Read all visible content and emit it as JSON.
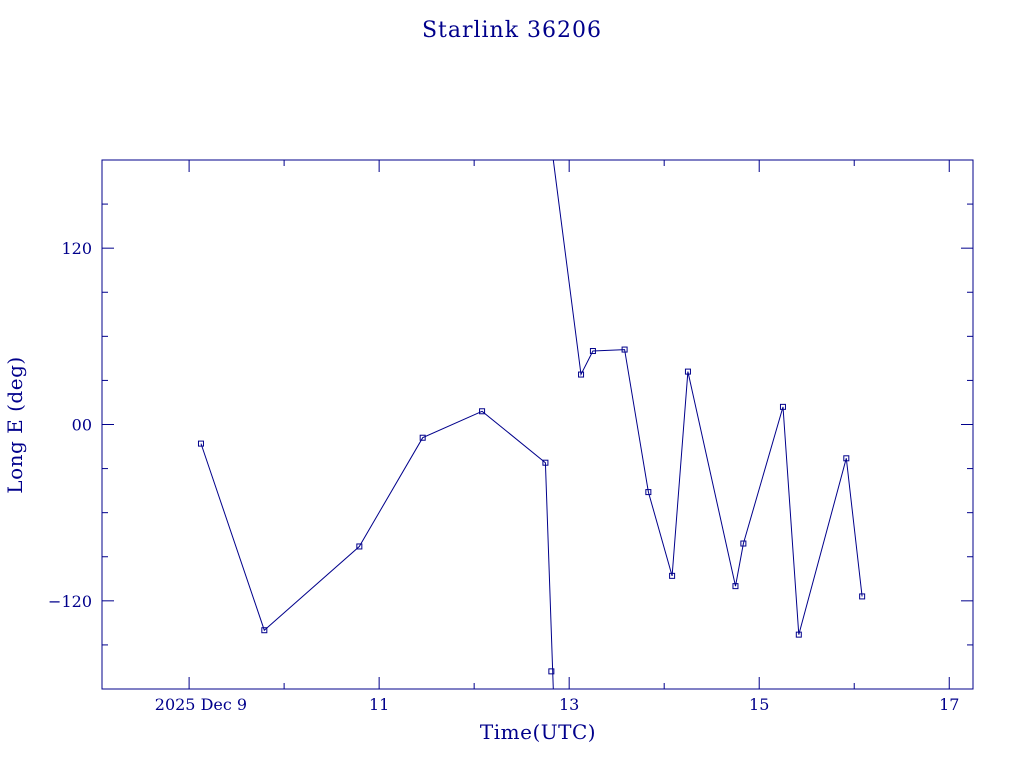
{
  "chart_data": {
    "type": "line",
    "title": "Starlink 36206",
    "xlabel": "Time(UTC)",
    "ylabel": "Long E (deg)",
    "color": "#00008b",
    "xlim": [
      "2025-12-08T02:00",
      "2025-12-17T06:00"
    ],
    "ylim": [
      -180,
      180
    ],
    "x_tick_labels": [
      {
        "t": "2025-12-09T00:00",
        "label": "2025 Dec  9"
      },
      {
        "t": "2025-12-11T00:00",
        "label": "11"
      },
      {
        "t": "2025-12-13T00:00",
        "label": "13"
      },
      {
        "t": "2025-12-15T00:00",
        "label": "15"
      },
      {
        "t": "2025-12-17T00:00",
        "label": "17"
      }
    ],
    "x_minor_ticks": [
      "2025-12-10T00:00",
      "2025-12-12T00:00",
      "2025-12-14T00:00",
      "2025-12-16T00:00"
    ],
    "y_tick_labels": [
      {
        "v": 120,
        "label": "120"
      },
      {
        "v": 0,
        "label": "00"
      },
      {
        "v": -120,
        "label": "−120"
      }
    ],
    "y_minor_ticks": [
      -150,
      -90,
      -60,
      -30,
      30,
      60,
      90,
      150
    ],
    "grid": false,
    "segments": [
      {
        "points": [
          {
            "t": "2025-12-09T03:00",
            "lon": -13
          },
          {
            "t": "2025-12-09T19:00",
            "lon": -140
          },
          {
            "t": "2025-12-10T19:00",
            "lon": -83
          },
          {
            "t": "2025-12-11T11:00",
            "lon": -9
          },
          {
            "t": "2025-12-12T02:00",
            "lon": 9
          },
          {
            "t": "2025-12-12T18:00",
            "lon": -26
          },
          {
            "t": "2025-12-12T20:00",
            "lon": -180
          }
        ]
      },
      {
        "points": [
          {
            "t": "2025-12-12T20:00",
            "lon": 180
          },
          {
            "t": "2025-12-13T03:00",
            "lon": 34
          },
          {
            "t": "2025-12-13T06:00",
            "lon": 50
          },
          {
            "t": "2025-12-13T14:00",
            "lon": 51
          },
          {
            "t": "2025-12-13T20:00",
            "lon": -46
          },
          {
            "t": "2025-12-14T02:00",
            "lon": -103
          },
          {
            "t": "2025-12-14T06:00",
            "lon": 36
          },
          {
            "t": "2025-12-14T18:00",
            "lon": -110
          },
          {
            "t": "2025-12-14T20:00",
            "lon": -81
          },
          {
            "t": "2025-12-15T06:00",
            "lon": 12
          },
          {
            "t": "2025-12-15T10:00",
            "lon": -143
          },
          {
            "t": "2025-12-15T22:00",
            "lon": -23
          },
          {
            "t": "2025-12-16T02:00",
            "lon": -117
          }
        ]
      }
    ],
    "markers": [
      {
        "t": "2025-12-09T03:00",
        "lon": -13
      },
      {
        "t": "2025-12-09T19:00",
        "lon": -140
      },
      {
        "t": "2025-12-10T19:00",
        "lon": -83
      },
      {
        "t": "2025-12-11T11:00",
        "lon": -9
      },
      {
        "t": "2025-12-12T02:00",
        "lon": 9
      },
      {
        "t": "2025-12-12T18:00",
        "lon": -26
      },
      {
        "t": "2025-12-12T19:30",
        "lon": -168
      },
      {
        "t": "2025-12-13T03:00",
        "lon": 34
      },
      {
        "t": "2025-12-13T06:00",
        "lon": 50
      },
      {
        "t": "2025-12-13T14:00",
        "lon": 51
      },
      {
        "t": "2025-12-13T20:00",
        "lon": -46
      },
      {
        "t": "2025-12-14T02:00",
        "lon": -103
      },
      {
        "t": "2025-12-14T06:00",
        "lon": 36
      },
      {
        "t": "2025-12-14T18:00",
        "lon": -110
      },
      {
        "t": "2025-12-14T20:00",
        "lon": -81
      },
      {
        "t": "2025-12-15T06:00",
        "lon": 12
      },
      {
        "t": "2025-12-15T10:00",
        "lon": -143
      },
      {
        "t": "2025-12-15T22:00",
        "lon": -23
      },
      {
        "t": "2025-12-16T02:00",
        "lon": -117
      }
    ]
  }
}
